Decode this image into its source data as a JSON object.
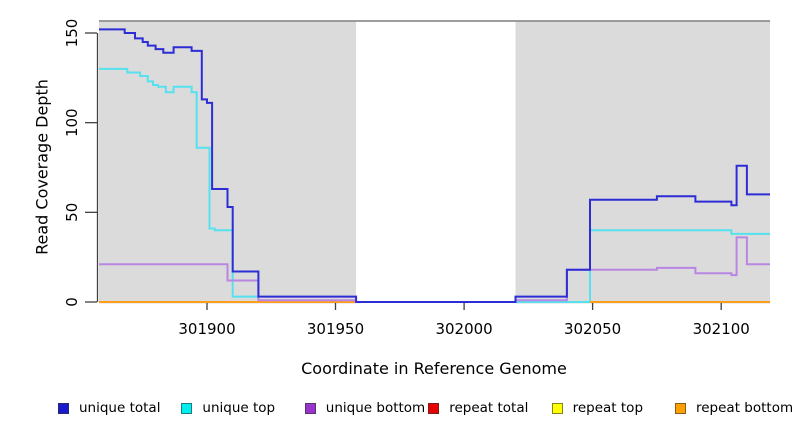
{
  "chart_data": {
    "type": "line",
    "title": "",
    "xlabel": "Coordinate in Reference Genome",
    "ylabel": "Read Coverage Depth",
    "xlim": [
      301858,
      302119
    ],
    "ylim": [
      0,
      157
    ],
    "x_ticks": [
      301900,
      301950,
      302000,
      302050,
      302100
    ],
    "y_ticks": [
      0,
      50,
      100,
      150
    ],
    "grid": false,
    "background": {
      "shade_color": "#DBDBDB",
      "shaded_regions": [
        [
          301858,
          301958
        ],
        [
          302020,
          302119
        ]
      ],
      "gap_region": [
        301958,
        302020
      ],
      "top_border_color": "#8F8F8F"
    },
    "axis_color": "#404040",
    "series": [
      {
        "id": "repeat-total",
        "label": "repeat total",
        "color": "#E60000",
        "line_color": "#DD3333",
        "steps": [
          [
            301858,
            0
          ]
        ]
      },
      {
        "id": "repeat-top",
        "label": "repeat top",
        "color": "#FFFF00",
        "line_color": "#E8E84D",
        "steps": [
          [
            301858,
            0
          ]
        ]
      },
      {
        "id": "unique-top",
        "label": "unique top",
        "color": "#00EEEE",
        "line_color": "#55E2EE",
        "steps": [
          [
            301858,
            130
          ],
          [
            301869,
            128
          ],
          [
            301874,
            126
          ],
          [
            301877,
            123
          ],
          [
            301879,
            121
          ],
          [
            301881,
            120
          ],
          [
            301884,
            117
          ],
          [
            301887,
            120
          ],
          [
            301894,
            117
          ],
          [
            301896,
            86
          ],
          [
            301901,
            41
          ],
          [
            301903,
            40
          ],
          [
            301910,
            3
          ],
          [
            301920,
            0
          ],
          [
            302049,
            40
          ],
          [
            302104,
            38
          ]
        ]
      },
      {
        "id": "repeat-bottom",
        "label": "repeat bottom",
        "color": "#FFA000",
        "line_color": "#FF9E1B",
        "steps": [
          [
            301858,
            0
          ]
        ],
        "gaps": [
          [
            301958,
            302049
          ]
        ]
      },
      {
        "id": "unique-bottom",
        "label": "unique bottom",
        "color": "#9933CC",
        "line_color": "#BA86E3",
        "steps": [
          [
            301858,
            21
          ],
          [
            301908,
            12
          ],
          [
            301920,
            1
          ],
          [
            301958,
            0
          ],
          [
            302020,
            1
          ],
          [
            302040,
            18
          ],
          [
            302075,
            19
          ],
          [
            302090,
            16
          ],
          [
            302104,
            15
          ],
          [
            302106,
            36
          ],
          [
            302110,
            21
          ]
        ]
      },
      {
        "id": "unique-total",
        "label": "unique total",
        "color": "#1A1ACC",
        "line_color": "#2D2DD6",
        "steps": [
          [
            301858,
            152
          ],
          [
            301868,
            150
          ],
          [
            301872,
            147
          ],
          [
            301875,
            145
          ],
          [
            301877,
            143
          ],
          [
            301880,
            141
          ],
          [
            301883,
            139
          ],
          [
            301887,
            142
          ],
          [
            301894,
            140
          ],
          [
            301898,
            113
          ],
          [
            301900,
            111
          ],
          [
            301902,
            63
          ],
          [
            301908,
            53
          ],
          [
            301910,
            17
          ],
          [
            301920,
            3
          ],
          [
            301958,
            0
          ],
          [
            302020,
            3
          ],
          [
            302040,
            18
          ],
          [
            302049,
            57
          ],
          [
            302075,
            59
          ],
          [
            302090,
            56
          ],
          [
            302104,
            54
          ],
          [
            302106,
            76
          ],
          [
            302110,
            60
          ]
        ]
      }
    ],
    "legend": {
      "position": "bottom",
      "order": [
        "unique-total",
        "unique-top",
        "unique-bottom",
        "repeat-total",
        "repeat-top",
        "repeat-bottom"
      ]
    }
  }
}
